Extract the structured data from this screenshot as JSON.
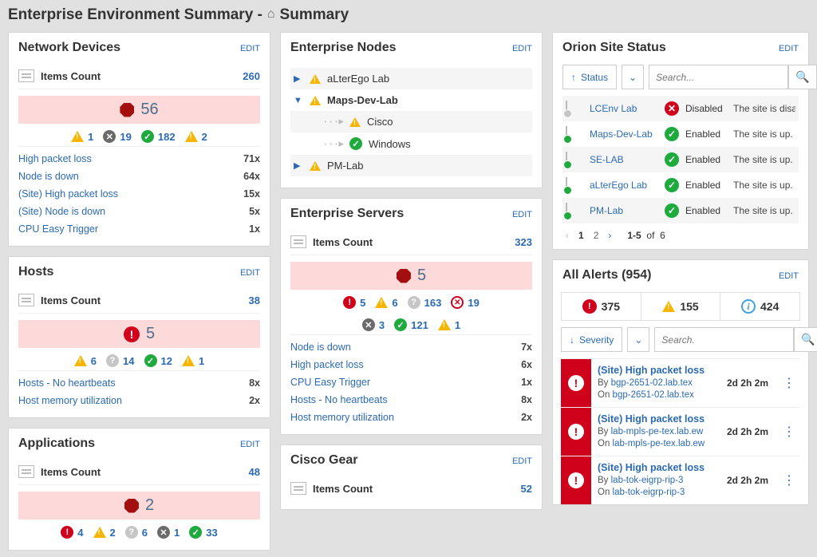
{
  "page": {
    "title_prefix": "Enterprise Environment Summary - ",
    "title_suffix": "Summary"
  },
  "labels": {
    "edit": "EDIT",
    "items_count": "Items Count",
    "by": "By",
    "on": "On",
    "of": "of"
  },
  "network_devices": {
    "title": "Network Devices",
    "count": "260",
    "big": "56",
    "stats": {
      "warn1": "1",
      "dark": "19",
      "ok": "182",
      "warn2": "2"
    },
    "rows": [
      {
        "label": "High packet loss",
        "cnt": "71x"
      },
      {
        "label": "Node is down",
        "cnt": "64x"
      },
      {
        "label": "(Site) High packet loss",
        "cnt": "15x"
      },
      {
        "label": "(Site) Node is down",
        "cnt": "5x"
      },
      {
        "label": "CPU Easy Trigger",
        "cnt": "1x"
      }
    ]
  },
  "hosts": {
    "title": "Hosts",
    "count": "38",
    "big": "5",
    "stats": {
      "warn1": "6",
      "unk": "14",
      "ok": "12",
      "warn2": "1"
    },
    "rows": [
      {
        "label": "Hosts - No heartbeats",
        "cnt": "8x"
      },
      {
        "label": "Host memory utilization",
        "cnt": "2x"
      }
    ]
  },
  "applications": {
    "title": "Applications",
    "count": "48",
    "big": "2",
    "stats": {
      "crit": "4",
      "warn": "2",
      "unk": "6",
      "dark": "1",
      "ok": "33"
    }
  },
  "enterprise_nodes": {
    "title": "Enterprise Nodes",
    "items": {
      "r0": "aLterEgo Lab",
      "r1": "Maps-Dev-Lab",
      "r2": "Cisco",
      "r3": "Windows",
      "r4": "PM-Lab"
    }
  },
  "enterprise_servers": {
    "title": "Enterprise Servers",
    "count": "323",
    "big": "5",
    "stats": {
      "crit": "5",
      "warn1": "6",
      "unk": "163",
      "xcirc": "19",
      "dark": "3",
      "ok": "121",
      "warn2": "1"
    },
    "rows": [
      {
        "label": "Node is down",
        "cnt": "7x"
      },
      {
        "label": "High packet loss",
        "cnt": "6x"
      },
      {
        "label": "CPU Easy Trigger",
        "cnt": "1x"
      },
      {
        "label": "Hosts - No heartbeats",
        "cnt": "8x"
      },
      {
        "label": "Host memory utilization",
        "cnt": "2x"
      }
    ]
  },
  "cisco_gear": {
    "title": "Cisco Gear",
    "count": "52"
  },
  "site_status": {
    "title": "Orion Site Status",
    "sort_label": "Status",
    "search_placeholder": "Search...",
    "rows": [
      {
        "name": "LCEnv Lab",
        "ok": false,
        "status": "Disabled",
        "desc": "The site is disabled.",
        "dot": "gray"
      },
      {
        "name": "Maps-Dev-Lab",
        "ok": true,
        "status": "Enabled",
        "desc": "The site is up.",
        "dot": "g"
      },
      {
        "name": "SE-LAB",
        "ok": true,
        "status": "Enabled",
        "desc": "The site is up.",
        "dot": "g"
      },
      {
        "name": "aLterEgo Lab",
        "ok": true,
        "status": "Enabled",
        "desc": "The site is up.",
        "dot": "g"
      },
      {
        "name": "PM-Lab",
        "ok": true,
        "status": "Enabled",
        "desc": "The site is up.",
        "dot": "g"
      }
    ],
    "pager": {
      "p1": "1",
      "p2": "2",
      "range": "1-5",
      "total": "6"
    }
  },
  "alerts": {
    "title": "All Alerts (954)",
    "summary": {
      "crit": "375",
      "warn": "155",
      "info": "424"
    },
    "sort_label": "Severity",
    "search_placeholder": "Search.",
    "items": [
      {
        "title": "(Site) High packet loss",
        "by": "bgp-2651-02.lab.tex",
        "on": "bgp-2651-02.lab.tex",
        "age": "2d 2h 2m"
      },
      {
        "title": "(Site) High packet loss",
        "by": "lab-mpls-pe-tex.lab.ew",
        "on": "lab-mpls-pe-tex.lab.ew",
        "age": "2d 2h 2m"
      },
      {
        "title": "(Site) High packet loss",
        "by": "lab-tok-eigrp-rip-3",
        "on": "lab-tok-eigrp-rip-3",
        "age": "2d 2h 2m"
      }
    ]
  }
}
